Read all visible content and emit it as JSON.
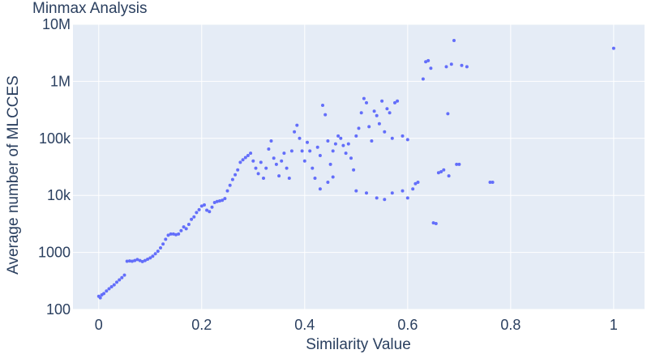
{
  "chart_data": {
    "type": "scatter",
    "title": "Minmax Analysis",
    "xlabel": "Similarity Value",
    "ylabel": "Average number of MLCCES",
    "xlim": [
      -0.05,
      1.06
    ],
    "ylim": [
      100,
      10000000
    ],
    "y_scale": "log",
    "x_ticks": [
      0,
      0.2,
      0.4,
      0.6,
      0.8,
      1
    ],
    "x_tick_labels": [
      "0",
      "0.2",
      "0.4",
      "0.6",
      "0.8",
      "1"
    ],
    "y_ticks": [
      100,
      1000,
      10000,
      100000,
      1000000,
      10000000
    ],
    "y_tick_labels": [
      "100",
      "1000",
      "10k",
      "100k",
      "1M",
      "10M"
    ],
    "grid": true,
    "legend": "none",
    "colors": {
      "marker": "#636efa",
      "plot_bg": "#e5ecf6",
      "grid": "#ffffff",
      "text": "#2a3f5f"
    },
    "series": [
      {
        "points": [
          [
            0.0,
            170
          ],
          [
            0.003,
            160
          ],
          [
            0.006,
            180
          ],
          [
            0.01,
            190
          ],
          [
            0.015,
            210
          ],
          [
            0.02,
            230
          ],
          [
            0.025,
            250
          ],
          [
            0.03,
            270
          ],
          [
            0.035,
            300
          ],
          [
            0.04,
            330
          ],
          [
            0.045,
            360
          ],
          [
            0.05,
            400
          ],
          [
            0.055,
            700
          ],
          [
            0.06,
            710
          ],
          [
            0.065,
            700
          ],
          [
            0.07,
            720
          ],
          [
            0.075,
            750
          ],
          [
            0.08,
            720
          ],
          [
            0.085,
            690
          ],
          [
            0.09,
            720
          ],
          [
            0.095,
            760
          ],
          [
            0.1,
            800
          ],
          [
            0.105,
            860
          ],
          [
            0.11,
            950
          ],
          [
            0.115,
            1050
          ],
          [
            0.12,
            1200
          ],
          [
            0.125,
            1400
          ],
          [
            0.13,
            1700
          ],
          [
            0.135,
            2000
          ],
          [
            0.14,
            2100
          ],
          [
            0.145,
            2100
          ],
          [
            0.15,
            2050
          ],
          [
            0.155,
            2100
          ],
          [
            0.16,
            2400
          ],
          [
            0.165,
            2800
          ],
          [
            0.17,
            2600
          ],
          [
            0.175,
            3100
          ],
          [
            0.18,
            3800
          ],
          [
            0.185,
            4200
          ],
          [
            0.19,
            5000
          ],
          [
            0.195,
            5600
          ],
          [
            0.2,
            6500
          ],
          [
            0.205,
            6800
          ],
          [
            0.21,
            5500
          ],
          [
            0.215,
            5200
          ],
          [
            0.22,
            6200
          ],
          [
            0.225,
            7500
          ],
          [
            0.23,
            7800
          ],
          [
            0.235,
            8000
          ],
          [
            0.24,
            8200
          ],
          [
            0.245,
            8800
          ],
          [
            0.25,
            12000
          ],
          [
            0.255,
            15000
          ],
          [
            0.26,
            19000
          ],
          [
            0.265,
            23000
          ],
          [
            0.27,
            28000
          ],
          [
            0.275,
            38000
          ],
          [
            0.28,
            42000
          ],
          [
            0.285,
            46000
          ],
          [
            0.29,
            50000
          ],
          [
            0.295,
            55000
          ],
          [
            0.3,
            40000
          ],
          [
            0.305,
            30000
          ],
          [
            0.31,
            24000
          ],
          [
            0.315,
            38000
          ],
          [
            0.32,
            20000
          ],
          [
            0.325,
            30000
          ],
          [
            0.33,
            65000
          ],
          [
            0.335,
            90000
          ],
          [
            0.34,
            45000
          ],
          [
            0.345,
            35000
          ],
          [
            0.35,
            22000
          ],
          [
            0.355,
            40000
          ],
          [
            0.36,
            55000
          ],
          [
            0.365,
            30000
          ],
          [
            0.37,
            20000
          ],
          [
            0.375,
            60000
          ],
          [
            0.38,
            130000
          ],
          [
            0.385,
            170000
          ],
          [
            0.39,
            100000
          ],
          [
            0.395,
            60000
          ],
          [
            0.4,
            40000
          ],
          [
            0.405,
            85000
          ],
          [
            0.41,
            60000
          ],
          [
            0.415,
            30000
          ],
          [
            0.42,
            20000
          ],
          [
            0.425,
            70000
          ],
          [
            0.43,
            50000
          ],
          [
            0.435,
            380000
          ],
          [
            0.44,
            260000
          ],
          [
            0.445,
            90000
          ],
          [
            0.45,
            35000
          ],
          [
            0.455,
            60000
          ],
          [
            0.46,
            80000
          ],
          [
            0.465,
            110000
          ],
          [
            0.47,
            100000
          ],
          [
            0.475,
            75000
          ],
          [
            0.48,
            55000
          ],
          [
            0.485,
            80000
          ],
          [
            0.49,
            45000
          ],
          [
            0.495,
            28000
          ],
          [
            0.5,
            110000
          ],
          [
            0.505,
            150000
          ],
          [
            0.51,
            280000
          ],
          [
            0.515,
            500000
          ],
          [
            0.52,
            420000
          ],
          [
            0.525,
            160000
          ],
          [
            0.53,
            90000
          ],
          [
            0.535,
            300000
          ],
          [
            0.54,
            250000
          ],
          [
            0.545,
            180000
          ],
          [
            0.55,
            450000
          ],
          [
            0.555,
            130000
          ],
          [
            0.56,
            330000
          ],
          [
            0.565,
            280000
          ],
          [
            0.57,
            100000
          ],
          [
            0.575,
            420000
          ],
          [
            0.58,
            450000
          ],
          [
            0.59,
            110000
          ],
          [
            0.6,
            95000
          ],
          [
            0.43,
            13000
          ],
          [
            0.445,
            17000
          ],
          [
            0.455,
            21000
          ],
          [
            0.5,
            12000
          ],
          [
            0.52,
            11000
          ],
          [
            0.54,
            9000
          ],
          [
            0.555,
            8500
          ],
          [
            0.57,
            11000
          ],
          [
            0.59,
            12000
          ],
          [
            0.6,
            9000
          ],
          [
            0.61,
            13000
          ],
          [
            0.615,
            16000
          ],
          [
            0.62,
            17000
          ],
          [
            0.63,
            1100000
          ],
          [
            0.635,
            2200000
          ],
          [
            0.64,
            2300000
          ],
          [
            0.645,
            1700000
          ],
          [
            0.65,
            3300
          ],
          [
            0.655,
            3200
          ],
          [
            0.66,
            25000
          ],
          [
            0.665,
            26000
          ],
          [
            0.67,
            28000
          ],
          [
            0.675,
            1800000
          ],
          [
            0.678,
            270000
          ],
          [
            0.68,
            22000
          ],
          [
            0.685,
            2000000
          ],
          [
            0.69,
            5200000
          ],
          [
            0.695,
            35000
          ],
          [
            0.7,
            35000
          ],
          [
            0.705,
            1900000
          ],
          [
            0.715,
            1800000
          ],
          [
            0.76,
            17000
          ],
          [
            0.765,
            17000
          ],
          [
            1.0,
            3800000
          ]
        ]
      }
    ]
  }
}
